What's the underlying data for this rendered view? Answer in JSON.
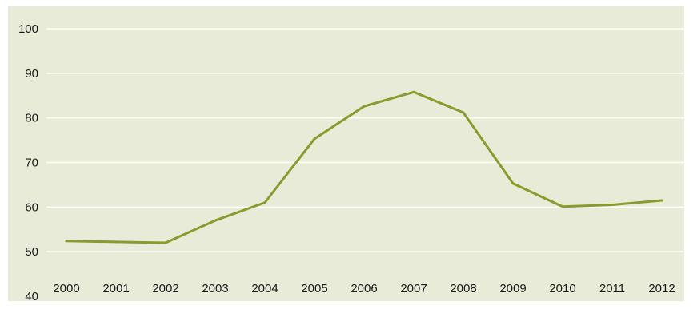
{
  "chart_data": {
    "type": "line",
    "title": "",
    "xlabel": "",
    "ylabel": "",
    "categories": [
      "2000",
      "2001",
      "2002",
      "2003",
      "2004",
      "2005",
      "2006",
      "2007",
      "2008",
      "2009",
      "2010",
      "2011",
      "2012"
    ],
    "series": [
      {
        "values": [
          52.4,
          52.2,
          52.0,
          57.0,
          61.0,
          75.3,
          82.6,
          85.8,
          81.2,
          65.3,
          60.1,
          60.5,
          61.5
        ]
      }
    ],
    "y_ticks": [
      "40",
      "50",
      "60",
      "70",
      "80",
      "90",
      "100"
    ],
    "ylim": [
      40,
      100
    ],
    "grid": true,
    "legend": "none",
    "colors": {
      "background": "#e8ebd7",
      "line": "#8a9a2d",
      "grid": "#ffffff"
    }
  }
}
